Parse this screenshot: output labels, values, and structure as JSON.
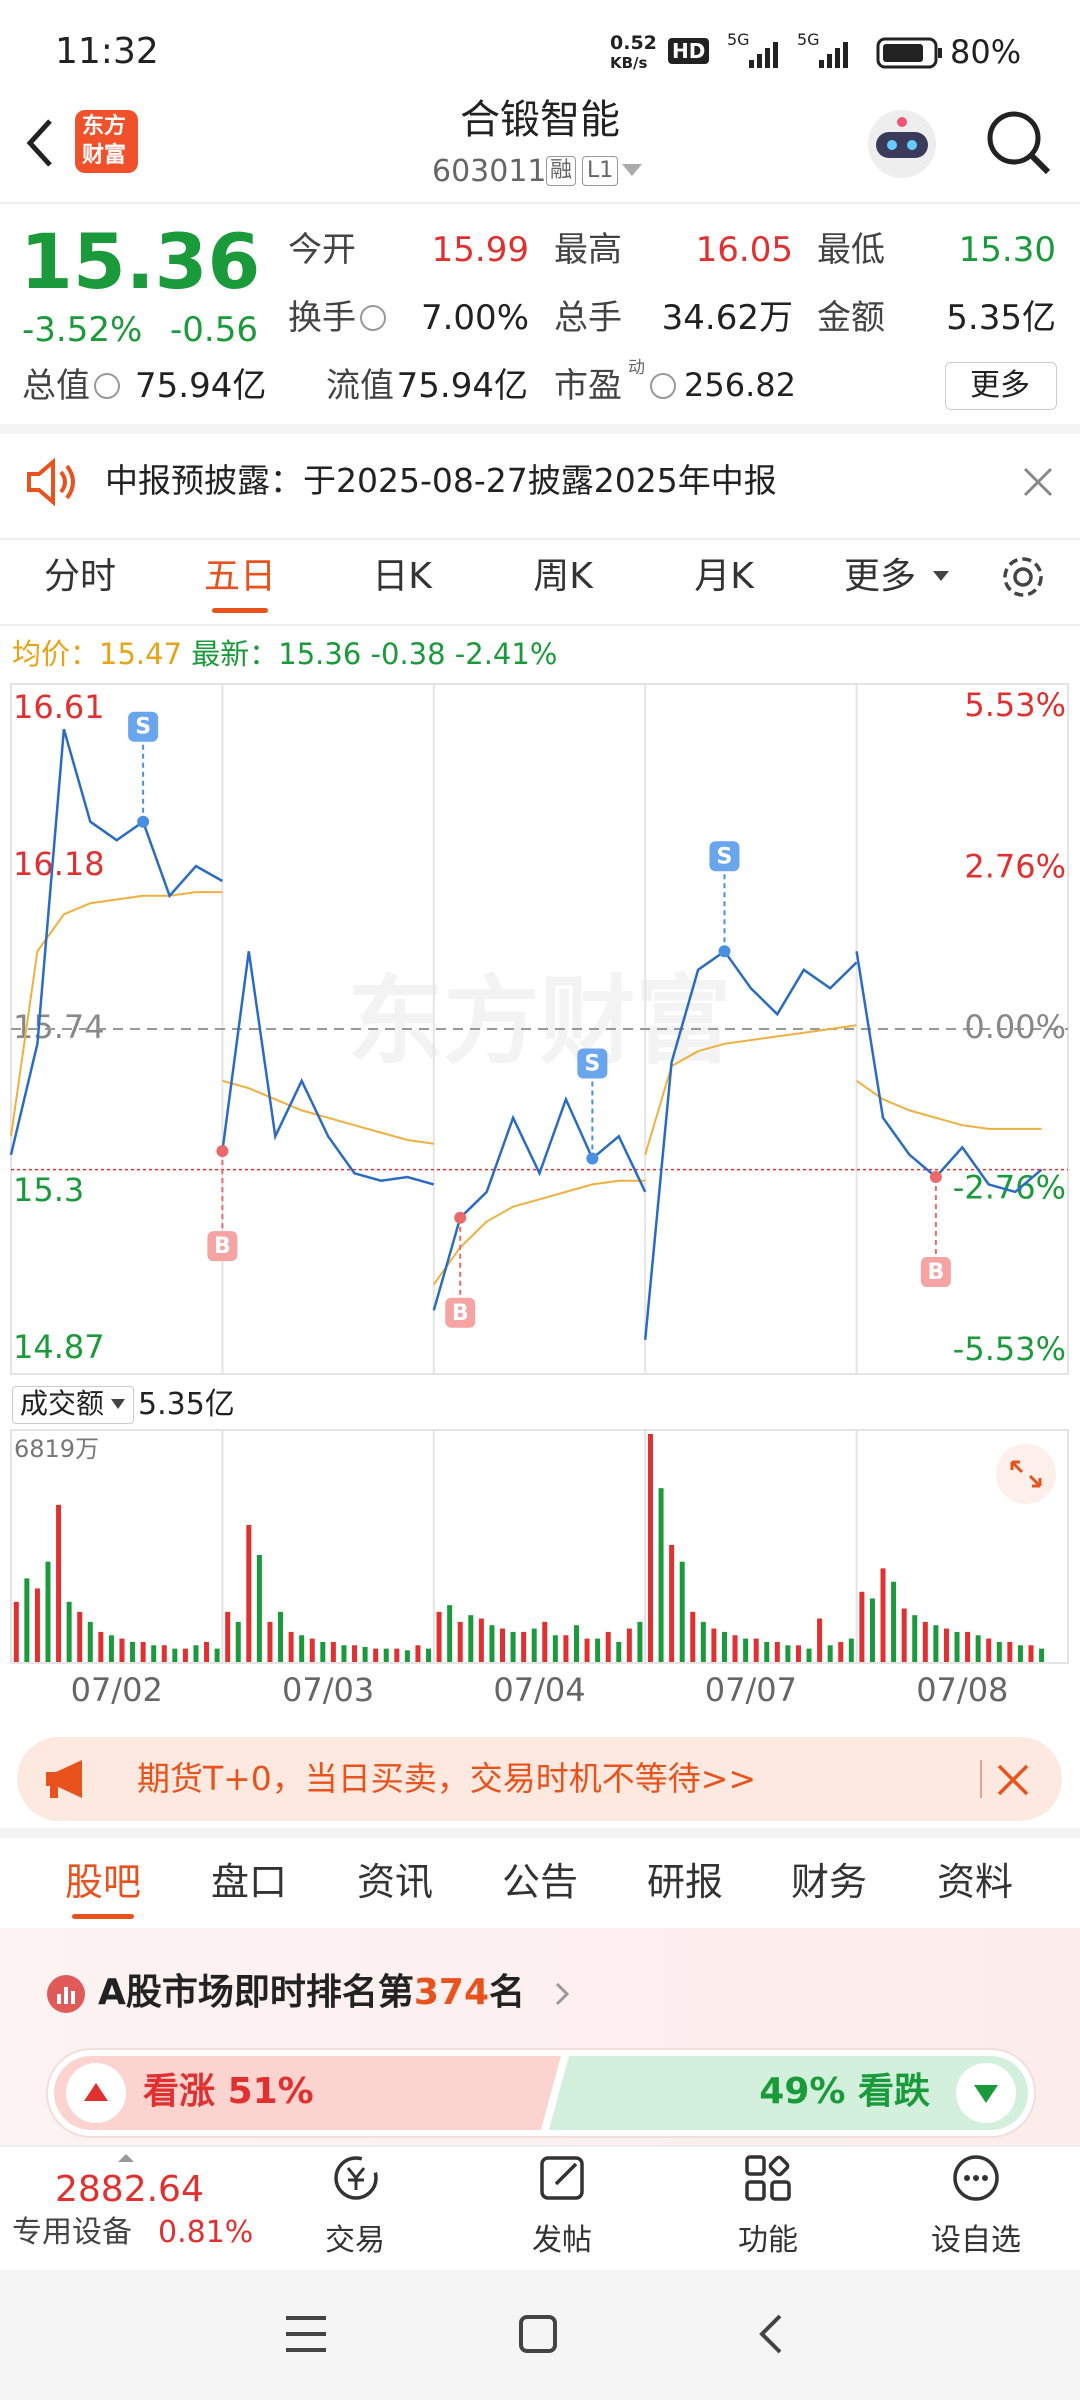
{
  "status_bar": {
    "time": "11:32",
    "speed": "0.52",
    "speed_unit": "KB/s",
    "hd": "HD",
    "net1": "5G",
    "net2": "5G",
    "battery": "80%"
  },
  "header": {
    "logo": [
      "东方",
      "财富"
    ],
    "title": "合锻智能",
    "code": "603011",
    "badge1": "融",
    "badge2": "L1"
  },
  "quote": {
    "price": "15.36",
    "change_pct": "-3.52%",
    "change": "-0.56",
    "fields": [
      {
        "label": "今开",
        "value": "15.99"
      },
      {
        "label": "最高",
        "value": "16.05"
      },
      {
        "label": "最低",
        "value": "15.30"
      },
      {
        "label": "换手",
        "value": "7.00%"
      },
      {
        "label": "总手",
        "value": "34.62万"
      },
      {
        "label": "金额",
        "value": "5.35亿"
      },
      {
        "label": "总值",
        "value": "75.94亿"
      },
      {
        "label": "流值",
        "value": "75.94亿"
      },
      {
        "label": "市盈",
        "value": "256.82"
      }
    ],
    "pe_sup": "动",
    "more": "更多"
  },
  "notice": "中报预披露：于2025-08-27披露2025年中报",
  "tabs": [
    "分时",
    "五日",
    "日K",
    "周K",
    "月K",
    "更多"
  ],
  "info": {
    "avg_label": "均价：",
    "avg": "15.47",
    "latest_label": "最新：",
    "latest": "15.36",
    "change": "-0.38",
    "change_pct": "-2.41%"
  },
  "chart_data": {
    "type": "line",
    "watermark": "东方财富",
    "dates": [
      "07/02",
      "07/03",
      "07/04",
      "07/07",
      "07/08"
    ],
    "ylim": [
      14.87,
      16.61
    ],
    "yticks": [
      16.61,
      16.18,
      15.74,
      15.3,
      14.87
    ],
    "y2lim": [
      -5.53,
      5.53
    ],
    "y2ticks": [
      {
        "value": 5.53,
        "label": "5.53%"
      },
      {
        "value": 2.76,
        "label": "2.76%"
      },
      {
        "value": 0,
        "label": "0.00%"
      },
      {
        "value": -2.76,
        "label": "-2.76%"
      },
      {
        "value": -5.53,
        "label": "-5.53%"
      }
    ],
    "price_color": "#2a6cc4",
    "avg_color": "#f0b040",
    "up_color": "#e03030",
    "down_color": "#1a9a3a",
    "days": [
      {
        "price": [
          15.4,
          15.7,
          16.55,
          16.3,
          16.25,
          16.3,
          16.1,
          16.18,
          16.14
        ],
        "avg": [
          15.45,
          15.95,
          16.05,
          16.08,
          16.09,
          16.1,
          16.1,
          16.11,
          16.11
        ],
        "markers": [
          {
            "label": "S",
            "index": 5
          }
        ]
      },
      {
        "price": [
          15.41,
          15.95,
          15.45,
          15.6,
          15.45,
          15.35,
          15.33,
          15.34,
          15.32
        ],
        "avg": [
          15.6,
          15.58,
          15.55,
          15.52,
          15.5,
          15.48,
          15.46,
          15.44,
          15.43
        ],
        "markers": [
          {
            "label": "B",
            "index": 0
          }
        ]
      },
      {
        "price": [
          14.98,
          15.23,
          15.3,
          15.5,
          15.35,
          15.55,
          15.39,
          15.45,
          15.3
        ],
        "avg": [
          15.05,
          15.15,
          15.22,
          15.26,
          15.28,
          15.3,
          15.32,
          15.33,
          15.33
        ],
        "markers": [
          {
            "label": "B",
            "index": 1
          },
          {
            "label": "S",
            "index": 6
          }
        ]
      },
      {
        "price": [
          14.9,
          15.65,
          15.9,
          15.95,
          15.85,
          15.78,
          15.9,
          15.85,
          15.92
        ],
        "avg": [
          15.4,
          15.64,
          15.68,
          15.7,
          15.71,
          15.72,
          15.73,
          15.74,
          15.75
        ],
        "markers": [
          {
            "label": "S",
            "index": 3
          }
        ]
      },
      {
        "price": [
          15.95,
          15.5,
          15.4,
          15.34,
          15.42,
          15.32,
          15.3,
          15.36
        ],
        "avg": [
          15.6,
          15.55,
          15.52,
          15.5,
          15.48,
          15.47,
          15.47,
          15.47
        ],
        "markers": [
          {
            "label": "B",
            "index": 3
          }
        ]
      }
    ],
    "volume": {
      "label": "成交额",
      "value": "5.35亿",
      "max_label": "6819万",
      "ylim": [
        0,
        6819
      ],
      "days": [
        {
          "up": [
            1800,
            2200,
            4700,
            1500,
            900,
            700,
            600,
            500,
            400,
            600
          ],
          "down": [
            2500,
            3000,
            1800,
            1200,
            800,
            600,
            500,
            400,
            500,
            400
          ]
        },
        {
          "up": [
            1500,
            4100,
            1200,
            900,
            700,
            600,
            500,
            400,
            400,
            500
          ],
          "down": [
            1200,
            3200,
            1500,
            800,
            600,
            500,
            450,
            400,
            350,
            400
          ]
        },
        {
          "up": [
            1500,
            1200,
            1300,
            1000,
            900,
            1200,
            800,
            700,
            900,
            1000
          ],
          "down": [
            1700,
            1400,
            1100,
            900,
            1000,
            800,
            1100,
            700,
            600,
            1200
          ]
        },
        {
          "up": [
            6819,
            3500,
            1500,
            1000,
            800,
            700,
            600,
            500,
            1300,
            600
          ],
          "down": [
            5200,
            3000,
            1200,
            900,
            700,
            600,
            500,
            400,
            500,
            700
          ]
        },
        {
          "up": [
            2100,
            2800,
            1600,
            1200,
            1000,
            900,
            700,
            600,
            500
          ],
          "down": [
            1900,
            2400,
            1400,
            1100,
            900,
            800,
            600,
            500,
            400
          ]
        }
      ]
    }
  },
  "ad": "期货T+0，当日买卖，交易时机不等待>>",
  "tabs2": [
    "股吧",
    "盘口",
    "资讯",
    "公告",
    "研报",
    "财务",
    "资料"
  ],
  "rank": {
    "prefix": "A股市场即时排名第",
    "number": "374",
    "suffix": "名"
  },
  "sentiment": {
    "labels": [
      "看涨",
      "看跌"
    ],
    "values": [
      51,
      49
    ],
    "value_labels": [
      "51%",
      "49%"
    ]
  },
  "bottom": {
    "index": "2882.64",
    "sector": "专用设备",
    "sector_change": "0.81%",
    "buttons": [
      "交易",
      "发帖",
      "功能",
      "设自选"
    ]
  }
}
